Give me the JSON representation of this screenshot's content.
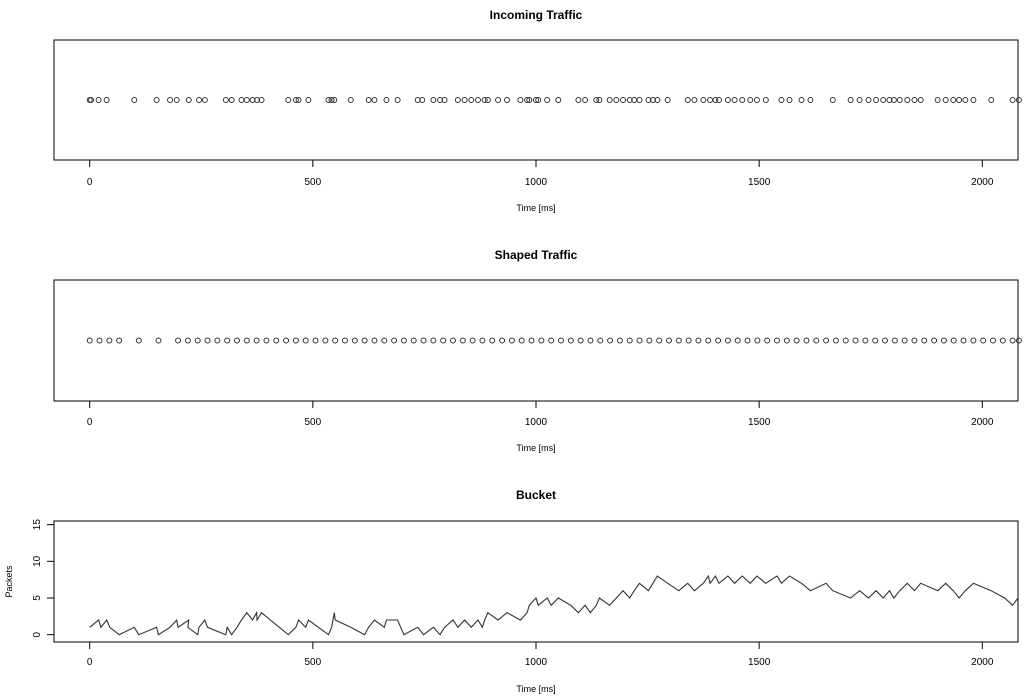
{
  "chart_data": [
    {
      "type": "scatter",
      "title": "Incoming Traffic",
      "xlabel": "Time [ms]",
      "ylabel": "",
      "xlim": [
        -80,
        2080
      ],
      "xticks": [
        "0",
        "500",
        "1000",
        "1500",
        "2000"
      ],
      "grid": false,
      "x": [
        0,
        3,
        20,
        38,
        100,
        150,
        180,
        195,
        222,
        245,
        258,
        305,
        318,
        340,
        352,
        365,
        375,
        385,
        445,
        462,
        468,
        490,
        535,
        542,
        548,
        585,
        625,
        638,
        665,
        690,
        735,
        745,
        770,
        785,
        795,
        825,
        840,
        855,
        870,
        885,
        892,
        915,
        935,
        965,
        980,
        985,
        1000,
        1005,
        1025,
        1050,
        1095,
        1110,
        1135,
        1142,
        1165,
        1180,
        1195,
        1210,
        1220,
        1232,
        1252,
        1262,
        1272,
        1295,
        1340,
        1355,
        1375,
        1390,
        1402,
        1410,
        1430,
        1445,
        1462,
        1480,
        1495,
        1515,
        1550,
        1568,
        1595,
        1615,
        1665,
        1705,
        1725,
        1745,
        1762,
        1778,
        1792,
        1802,
        1815,
        1832,
        1848,
        1862,
        1900,
        1918,
        1935,
        1948,
        1962,
        1980,
        2020,
        2068,
        2082
      ]
    },
    {
      "type": "scatter",
      "title": "Shaped Traffic",
      "xlabel": "Time [ms]",
      "ylabel": "",
      "xlim": [
        -80,
        2080
      ],
      "xticks": [
        "0",
        "500",
        "1000",
        "1500",
        "2000"
      ],
      "grid": false,
      "x": [
        0,
        22,
        44,
        66,
        110,
        154,
        198,
        220,
        242,
        264,
        286,
        308,
        330,
        352,
        374,
        396,
        418,
        440,
        462,
        484,
        506,
        528,
        550,
        572,
        594,
        616,
        638,
        660,
        682,
        704,
        726,
        748,
        770,
        792,
        814,
        836,
        858,
        880,
        902,
        924,
        946,
        968,
        990,
        1012,
        1034,
        1056,
        1078,
        1100,
        1122,
        1144,
        1166,
        1188,
        1210,
        1232,
        1254,
        1276,
        1298,
        1320,
        1342,
        1364,
        1386,
        1408,
        1430,
        1452,
        1474,
        1496,
        1518,
        1540,
        1562,
        1584,
        1606,
        1628,
        1650,
        1672,
        1694,
        1716,
        1738,
        1760,
        1782,
        1804,
        1826,
        1848,
        1870,
        1892,
        1914,
        1936,
        1958,
        1980,
        2002,
        2024,
        2046,
        2068,
        2082
      ]
    },
    {
      "type": "line",
      "title": "Bucket",
      "xlabel": "Time [ms]",
      "ylabel": "Packets",
      "xlim": [
        -80,
        2080
      ],
      "ylim": [
        -1,
        15.5
      ],
      "xticks": [
        "0",
        "500",
        "1000",
        "1500",
        "2000"
      ],
      "yticks": [
        "0",
        "5",
        "10",
        "15"
      ],
      "grid": false,
      "x": [
        0,
        20,
        25,
        38,
        45,
        66,
        100,
        110,
        150,
        154,
        180,
        195,
        198,
        222,
        220,
        242,
        245,
        258,
        264,
        305,
        308,
        318,
        330,
        340,
        352,
        365,
        374,
        375,
        385,
        445,
        462,
        468,
        484,
        490,
        535,
        542,
        548,
        550,
        585,
        616,
        625,
        638,
        660,
        665,
        690,
        704,
        735,
        748,
        770,
        785,
        795,
        814,
        825,
        840,
        855,
        870,
        880,
        885,
        892,
        915,
        935,
        965,
        980,
        985,
        1000,
        1005,
        1025,
        1034,
        1050,
        1078,
        1095,
        1110,
        1122,
        1135,
        1142,
        1165,
        1180,
        1195,
        1210,
        1220,
        1232,
        1252,
        1262,
        1272,
        1295,
        1320,
        1340,
        1355,
        1375,
        1386,
        1390,
        1402,
        1410,
        1430,
        1445,
        1462,
        1480,
        1495,
        1515,
        1540,
        1550,
        1568,
        1595,
        1615,
        1650,
        1665,
        1705,
        1725,
        1745,
        1762,
        1778,
        1792,
        1802,
        1815,
        1832,
        1848,
        1862,
        1900,
        1918,
        1935,
        1948,
        1962,
        1980,
        2020,
        2050,
        2068,
        2082
      ],
      "y": [
        1,
        2,
        1,
        2,
        1,
        0,
        1,
        0,
        1,
        0,
        1,
        2,
        1,
        2,
        1,
        0,
        1,
        2,
        1,
        0,
        1,
        0,
        1,
        2,
        3,
        2,
        3,
        2,
        3,
        0,
        1,
        2,
        1,
        2,
        0,
        1,
        3,
        2,
        1,
        0,
        1,
        2,
        1,
        2,
        2,
        0,
        1,
        0,
        1,
        0,
        1,
        2,
        1,
        2,
        1,
        2,
        1,
        2,
        3,
        2,
        3,
        2,
        3,
        4,
        5,
        4,
        5,
        4,
        5,
        4,
        3,
        4,
        3,
        4,
        5,
        4,
        5,
        6,
        5,
        6,
        7,
        6,
        7,
        8,
        7,
        6,
        7,
        6,
        7,
        8,
        7,
        8,
        7,
        8,
        7,
        8,
        7,
        8,
        7,
        8,
        7,
        8,
        7,
        6,
        7,
        6,
        5,
        6,
        5,
        6,
        5,
        6,
        5,
        6,
        7,
        6,
        7,
        6,
        7,
        6,
        5,
        6,
        7,
        6,
        5,
        4,
        5
      ]
    }
  ]
}
